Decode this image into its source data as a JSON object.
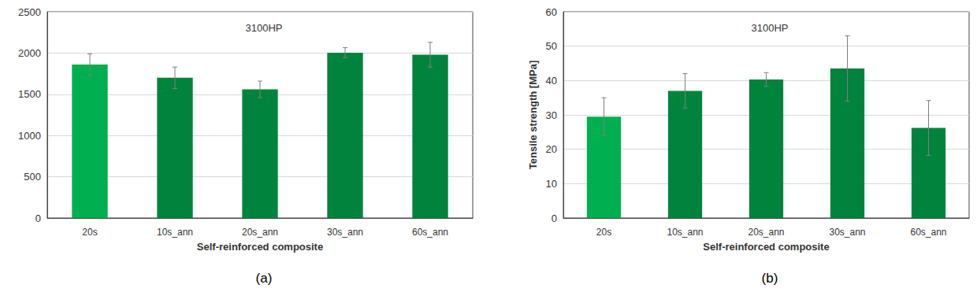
{
  "chart_data": [
    {
      "type": "bar",
      "title": "3100HP",
      "x_label": "Self-reinforced composite",
      "annotations": [
        "(a)"
      ],
      "categories": [
        "20s",
        "10s_ann",
        "20s_ann",
        "30s_ann",
        "60s_ann"
      ],
      "values": [
        1860,
        1700,
        1560,
        2005,
        1980
      ],
      "errors": [
        130,
        130,
        100,
        60,
        150
      ],
      "colors": [
        "#00b050",
        "#00843d",
        "#00843d",
        "#00843d",
        "#00843d"
      ],
      "ylim": [
        0,
        2500
      ],
      "yticks": [
        0,
        500,
        1000,
        1500,
        2000,
        2500
      ],
      "grid": true
    },
    {
      "type": "bar",
      "title": "3100HP",
      "x_label": "Self-reinforced composite",
      "y_label": "Tensile strength [MPa]",
      "annotations": [
        "(b)"
      ],
      "categories": [
        "20s",
        "10s_ann",
        "20s_ann",
        "30s_ann",
        "60s_ann"
      ],
      "values": [
        29.5,
        37,
        40.3,
        43.5,
        26.2
      ],
      "errors": [
        5.5,
        5,
        2,
        9.5,
        8
      ],
      "colors": [
        "#00b050",
        "#00843d",
        "#00843d",
        "#00843d",
        "#00843d"
      ],
      "ylim": [
        0,
        60
      ],
      "yticks": [
        0,
        10,
        20,
        30,
        40,
        50,
        60
      ],
      "grid": true
    }
  ]
}
